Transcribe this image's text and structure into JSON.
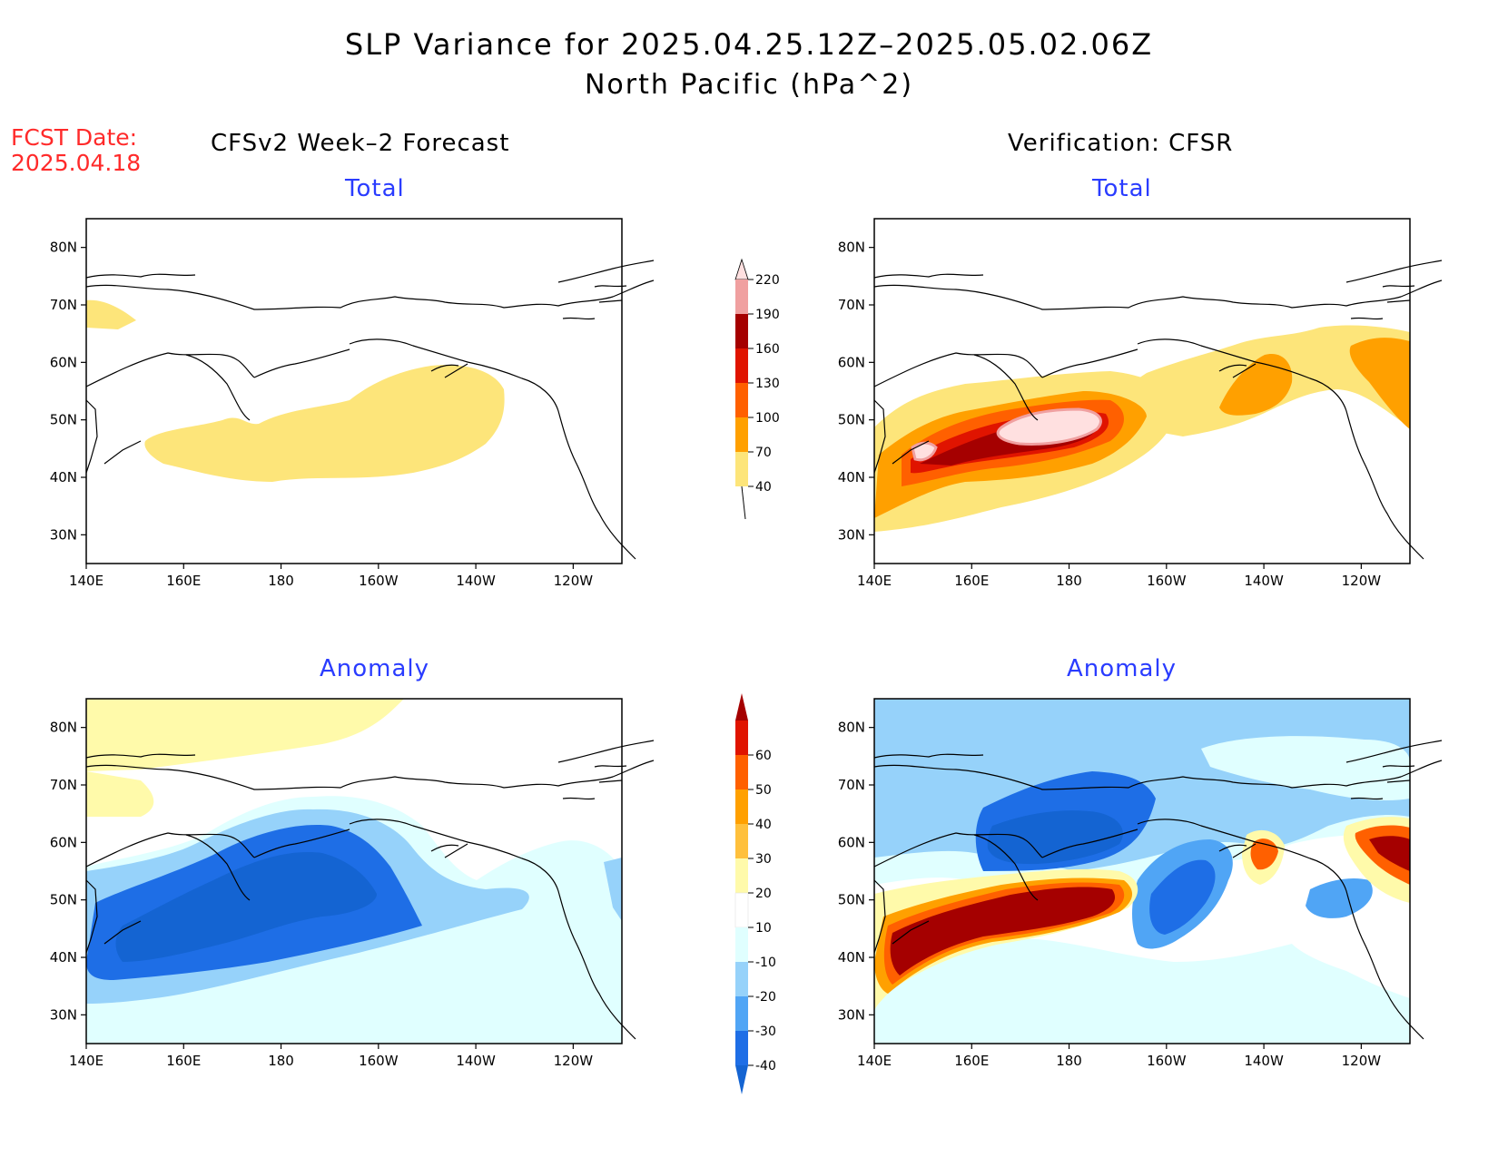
{
  "title": "SLP Variance for 2025.04.25.12Z–2025.05.02.06Z",
  "subtitle": "North Pacific (hPa^2)",
  "fcst_date_label": "FCST Date:",
  "fcst_date_value": "2025.04.18",
  "left_column_title": "CFSv2 Week–2 Forecast",
  "right_column_title": "Verification: CFSR",
  "panels": [
    {
      "id": "fcst-total",
      "title": "Total"
    },
    {
      "id": "fcst-anom",
      "title": "Anomaly"
    },
    {
      "id": "verif-total",
      "title": "Total"
    },
    {
      "id": "verif-anom",
      "title": "Anomaly"
    }
  ],
  "axes": {
    "lon_labels": [
      "140E",
      "160E",
      "180",
      "160W",
      "140W",
      "120W"
    ],
    "lat_labels": [
      "30N",
      "40N",
      "50N",
      "60N",
      "70N",
      "80N"
    ],
    "lon_range": [
      140,
      250
    ],
    "lat_range": [
      25,
      85
    ]
  },
  "colorbar_total": {
    "labels": [
      "40",
      "70",
      "100",
      "130",
      "160",
      "190",
      "220"
    ],
    "colors": [
      "#fde57a",
      "#ffa000",
      "#ff6000",
      "#e01400",
      "#a50000",
      "#f0a0a0",
      "#ffe0e0"
    ]
  },
  "colorbar_anomaly": {
    "labels": [
      "-40",
      "-30",
      "-20",
      "-10",
      "10",
      "20",
      "30",
      "40",
      "50",
      "60"
    ],
    "colors": [
      "#1464d2",
      "#1e6ee6",
      "#50a5f5",
      "#96d2fa",
      "#e0ffff",
      "#ffffff",
      "#fffaaa",
      "#ffc03c",
      "#ffa000",
      "#ff6000",
      "#e01400",
      "#a50000"
    ]
  },
  "colors": {
    "title_red": "#ff2a2a",
    "panel_title_blue": "#2a3cff"
  }
}
